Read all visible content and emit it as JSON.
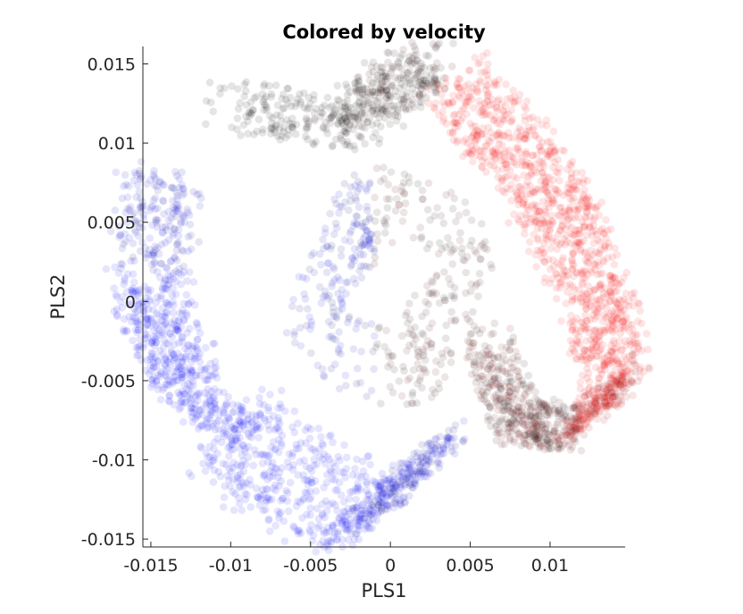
{
  "chart_data": {
    "type": "scatter",
    "title": "Colored by velocity",
    "xlabel": "PLS1",
    "ylabel": "PLS2",
    "xlim": [
      -0.0155,
      0.0147
    ],
    "ylim": [
      -0.0155,
      0.0161
    ],
    "xticks": [
      -0.015,
      -0.01,
      -0.005,
      0,
      0.005,
      0.01
    ],
    "xtick_labels": [
      "-0.015",
      "-0.01",
      "-0.005",
      "0",
      "0.005",
      "0.01"
    ],
    "yticks": [
      -0.015,
      -0.01,
      -0.005,
      0,
      0.005,
      0.01,
      0.015
    ],
    "ytick_labels": [
      "-0.015",
      "-0.01",
      "-0.005",
      "0",
      "0.005",
      "0.01",
      "0.015"
    ],
    "grid": false,
    "color_encoding": {
      "variable": "velocity",
      "negative_color": "#0000ff",
      "neutral_color": "#000000",
      "positive_color": "#ff0000",
      "marker_alpha": 0.1
    },
    "point_groups": [
      {
        "color": "blue",
        "region": "left lower arc",
        "approx_points": [
          [
            -0.0145,
            0.008
          ],
          [
            -0.015,
            0.0
          ],
          [
            -0.0125,
            -0.006
          ],
          [
            -0.008,
            -0.01
          ],
          [
            -0.002,
            -0.0135
          ],
          [
            0.0025,
            -0.01
          ]
        ]
      },
      {
        "color": "black",
        "region": "top middle",
        "approx_points": [
          [
            -0.01,
            0.0125
          ],
          [
            -0.003,
            0.011
          ],
          [
            0.0,
            0.0135
          ],
          [
            0.002,
            0.015
          ]
        ]
      },
      {
        "color": "red",
        "region": "right upper band",
        "approx_points": [
          [
            0.004,
            0.014
          ],
          [
            0.008,
            0.0095
          ],
          [
            0.011,
            0.005
          ],
          [
            0.013,
            0.0
          ],
          [
            0.014,
            -0.005
          ],
          [
            0.0125,
            -0.0075
          ]
        ]
      },
      {
        "color": "black",
        "region": "right lower",
        "approx_points": [
          [
            0.006,
            -0.0025
          ],
          [
            0.008,
            -0.0075
          ],
          [
            0.011,
            -0.008
          ]
        ]
      }
    ]
  }
}
